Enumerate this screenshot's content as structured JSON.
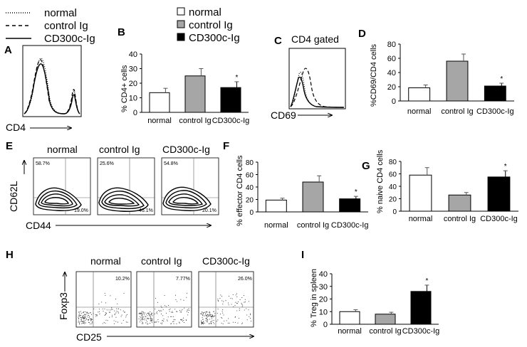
{
  "colors": {
    "normal": "#ffffff",
    "control": "#a6a6a6",
    "cd300c": "#000000",
    "axis": "#000000",
    "text": "#000000"
  },
  "legend_hist": {
    "items": [
      {
        "label": "normal",
        "style": "dotted"
      },
      {
        "label": "control Ig",
        "style": "dashed"
      },
      {
        "label": "CD300c-Ig",
        "style": "solid"
      }
    ]
  },
  "legend_bars": {
    "items": [
      {
        "label": "normal",
        "fill": "white"
      },
      {
        "label": "control Ig",
        "fill": "gray"
      },
      {
        "label": "CD300c-Ig",
        "fill": "black"
      }
    ]
  },
  "panels": {
    "A": {
      "letter": "A",
      "xlabel": "CD4"
    },
    "C": {
      "letter": "C",
      "title": "CD4 gated",
      "xlabel": "CD69"
    },
    "E": {
      "letter": "E",
      "xlabel": "CD44",
      "ylabel": "CD62L",
      "plots": [
        {
          "name": "normal",
          "ul": "58.7%",
          "lr": "19.0%"
        },
        {
          "name": "control Ig",
          "ul": "25.6%",
          "lr": "46.1%"
        },
        {
          "name": "CD300c-Ig",
          "ul": "54.8%",
          "lr": "20.1%"
        }
      ]
    },
    "H": {
      "letter": "H",
      "xlabel": "CD25",
      "ylabel": "Foxp3",
      "plots": [
        {
          "name": "normal",
          "ur": "10.2%"
        },
        {
          "name": "control Ig",
          "ur": "7.77%"
        },
        {
          "name": "CD300c-Ig",
          "ur": "26.0%"
        }
      ]
    }
  },
  "chart_data": [
    {
      "id": "B",
      "letter": "B",
      "type": "bar",
      "categories": [
        "normal",
        "control Ig",
        "CD300c-Ig"
      ],
      "values": [
        13.5,
        25,
        17
      ],
      "errors": [
        3,
        5,
        4
      ],
      "ylabel": "% CD4+ cells",
      "ylim": [
        0,
        40
      ],
      "ticks": [
        0,
        10,
        20,
        30,
        40
      ],
      "significance": [
        "",
        "",
        "*"
      ]
    },
    {
      "id": "D",
      "letter": "D",
      "type": "bar",
      "categories": [
        "normal",
        "control Ig",
        "CD300c-Ig"
      ],
      "values": [
        18.5,
        56,
        21
      ],
      "errors": [
        4,
        10,
        4
      ],
      "ylabel": "%CD69/CD4 cells",
      "ylim": [
        0,
        80
      ],
      "ticks": [
        0,
        20,
        40,
        60,
        80
      ],
      "significance": [
        "",
        "",
        "*"
      ]
    },
    {
      "id": "F",
      "letter": "F",
      "type": "bar",
      "categories": [
        "normal",
        "control Ig",
        "CD300c-Ig"
      ],
      "values": [
        19,
        48,
        21
      ],
      "errors": [
        3,
        10,
        4
      ],
      "ylabel": "% effector CD4 cells",
      "ylim": [
        0,
        80
      ],
      "ticks": [
        0,
        20,
        40,
        60,
        80
      ],
      "significance": [
        "",
        "",
        "*"
      ]
    },
    {
      "id": "G",
      "letter": "G",
      "type": "bar",
      "categories": [
        "normal",
        "control Ig",
        "CD300c-Ig"
      ],
      "values": [
        58,
        26,
        55
      ],
      "errors": [
        12,
        4,
        10
      ],
      "ylabel": "% naive CD4 cells",
      "ylim": [
        0,
        80
      ],
      "ticks": [
        0,
        20,
        40,
        60,
        80
      ],
      "significance": [
        "",
        "",
        "*"
      ]
    },
    {
      "id": "I",
      "letter": "I",
      "type": "bar",
      "categories": [
        "normal",
        "control Ig",
        "CD300c-Ig"
      ],
      "values": [
        10,
        8,
        26
      ],
      "errors": [
        1.5,
        1.5,
        5
      ],
      "ylabel": "% Treg in spleen",
      "ylim": [
        0,
        40
      ],
      "ticks": [
        0,
        10,
        20,
        30,
        40
      ],
      "significance": [
        "",
        "",
        "*"
      ]
    }
  ]
}
